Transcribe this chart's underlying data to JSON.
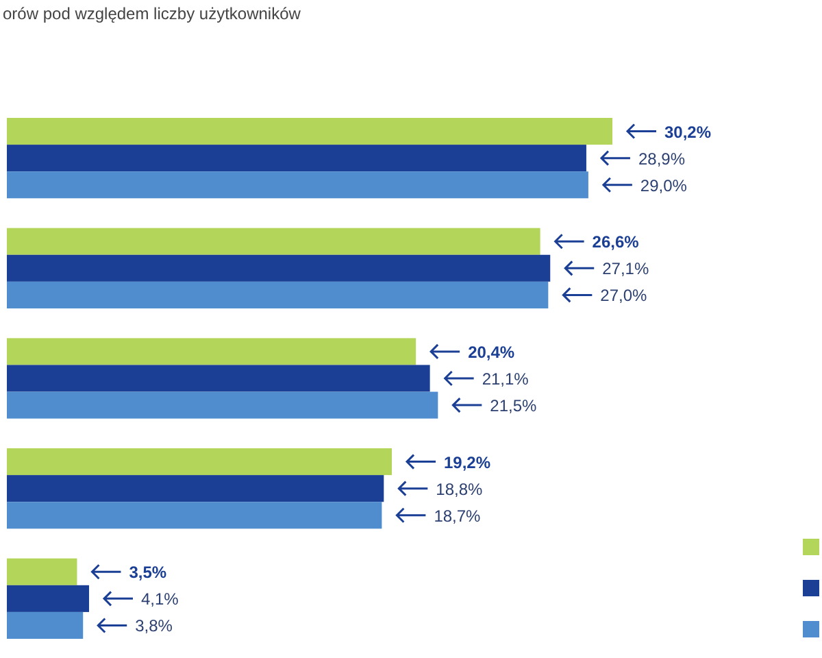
{
  "chart_data": {
    "type": "bar",
    "orientation": "horizontal",
    "title": "orów pod względem liczby użytkowników",
    "categories": [
      null,
      null,
      null,
      null,
      null
    ],
    "series": [
      {
        "color": "#b3d65a",
        "values": [
          30.2,
          26.6,
          20.4,
          19.2,
          3.5
        ],
        "value_labels": [
          "30,2%",
          "26,6%",
          "20,4%",
          "19,2%",
          "3,5%"
        ]
      },
      {
        "color": "#1b3f94",
        "values": [
          28.9,
          27.1,
          21.1,
          18.8,
          4.1
        ],
        "value_labels": [
          "28,9%",
          "27,1%",
          "21,1%",
          "18,8%",
          "4,1%"
        ]
      },
      {
        "color": "#4f8dcf",
        "values": [
          29.0,
          27.0,
          21.5,
          18.7,
          3.8
        ],
        "value_labels": [
          "29,0%",
          "27,0%",
          "21,5%",
          "18,7%",
          "3,8%"
        ]
      }
    ]
  }
}
